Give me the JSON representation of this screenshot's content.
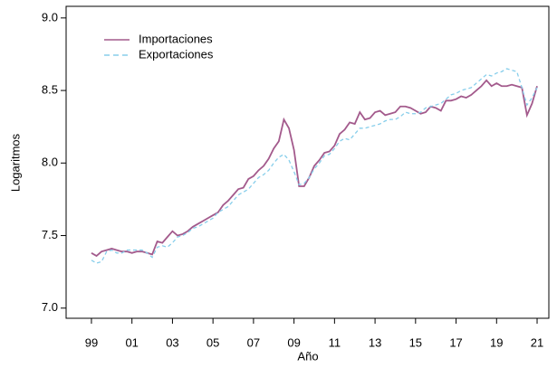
{
  "chart_data": {
    "type": "line",
    "xlabel": "Año",
    "ylabel": "Logaritmos",
    "x": [
      1999,
      1999.25,
      1999.5,
      1999.75,
      2000,
      2000.25,
      2000.5,
      2000.75,
      2001,
      2001.25,
      2001.5,
      2001.75,
      2002,
      2002.25,
      2002.5,
      2002.75,
      2003,
      2003.25,
      2003.5,
      2003.75,
      2004,
      2004.25,
      2004.5,
      2004.75,
      2005,
      2005.25,
      2005.5,
      2005.75,
      2006,
      2006.25,
      2006.5,
      2006.75,
      2007,
      2007.25,
      2007.5,
      2007.75,
      2008,
      2008.25,
      2008.5,
      2008.75,
      2009,
      2009.25,
      2009.5,
      2009.75,
      2010,
      2010.25,
      2010.5,
      2010.75,
      2011,
      2011.25,
      2011.5,
      2011.75,
      2012,
      2012.25,
      2012.5,
      2012.75,
      2013,
      2013.25,
      2013.5,
      2013.75,
      2014,
      2014.25,
      2014.5,
      2014.75,
      2015,
      2015.25,
      2015.5,
      2015.75,
      2016,
      2016.25,
      2016.5,
      2016.75,
      2017,
      2017.25,
      2017.5,
      2017.75,
      2018,
      2018.25,
      2018.5,
      2018.75,
      2019,
      2019.25,
      2019.5,
      2019.75,
      2020,
      2020.25,
      2020.5,
      2020.75,
      2021
    ],
    "series": [
      {
        "name": "Importaciones",
        "color": "#a35a8c",
        "linestyle": "solid",
        "values": [
          7.38,
          7.36,
          7.39,
          7.4,
          7.41,
          7.4,
          7.39,
          7.39,
          7.38,
          7.39,
          7.39,
          7.38,
          7.37,
          7.46,
          7.45,
          7.49,
          7.53,
          7.5,
          7.51,
          7.53,
          7.56,
          7.58,
          7.6,
          7.62,
          7.64,
          7.66,
          7.71,
          7.74,
          7.78,
          7.82,
          7.83,
          7.89,
          7.91,
          7.95,
          7.98,
          8.03,
          8.1,
          8.15,
          8.3,
          8.24,
          8.09,
          7.84,
          7.84,
          7.9,
          7.98,
          8.02,
          8.07,
          8.08,
          8.12,
          8.2,
          8.23,
          8.28,
          8.27,
          8.35,
          8.3,
          8.31,
          8.35,
          8.36,
          8.33,
          8.34,
          8.35,
          8.39,
          8.39,
          8.38,
          8.36,
          8.34,
          8.35,
          8.39,
          8.38,
          8.36,
          8.43,
          8.43,
          8.44,
          8.46,
          8.45,
          8.47,
          8.5,
          8.53,
          8.57,
          8.53,
          8.55,
          8.53,
          8.53,
          8.54,
          8.53,
          8.52,
          8.33,
          8.41,
          8.53
        ]
      },
      {
        "name": "Exportaciones",
        "color": "#87ceeb",
        "linestyle": "dashed",
        "values": [
          7.33,
          7.31,
          7.32,
          7.39,
          7.4,
          7.38,
          7.38,
          7.4,
          7.4,
          7.4,
          7.4,
          7.38,
          7.35,
          7.42,
          7.43,
          7.42,
          7.45,
          7.49,
          7.5,
          7.52,
          7.55,
          7.56,
          7.58,
          7.6,
          7.62,
          7.66,
          7.68,
          7.7,
          7.74,
          7.78,
          7.8,
          7.82,
          7.86,
          7.9,
          7.92,
          7.95,
          8.0,
          8.04,
          8.06,
          8.02,
          7.94,
          7.85,
          7.86,
          7.9,
          7.96,
          8.0,
          8.05,
          8.06,
          8.1,
          8.15,
          8.17,
          8.16,
          8.2,
          8.24,
          8.24,
          8.25,
          8.26,
          8.27,
          8.29,
          8.3,
          8.3,
          8.32,
          8.35,
          8.34,
          8.34,
          8.35,
          8.38,
          8.39,
          8.4,
          8.41,
          8.44,
          8.47,
          8.48,
          8.5,
          8.51,
          8.52,
          8.55,
          8.58,
          8.61,
          8.6,
          8.62,
          8.63,
          8.65,
          8.64,
          8.63,
          8.52,
          8.4,
          8.45,
          8.52
        ]
      }
    ],
    "xlim": [
      1997.75,
      2021.58
    ],
    "ylim": [
      6.93,
      9.08
    ],
    "xticks": [
      {
        "value": 1999,
        "label": "99"
      },
      {
        "value": 2001,
        "label": "01"
      },
      {
        "value": 2003,
        "label": "03"
      },
      {
        "value": 2005,
        "label": "05"
      },
      {
        "value": 2007,
        "label": "07"
      },
      {
        "value": 2009,
        "label": "09"
      },
      {
        "value": 2011,
        "label": "11"
      },
      {
        "value": 2013,
        "label": "13"
      },
      {
        "value": 2015,
        "label": "15"
      },
      {
        "value": 2017,
        "label": "17"
      },
      {
        "value": 2019,
        "label": "19"
      },
      {
        "value": 2021,
        "label": "21"
      }
    ],
    "yticks": [
      {
        "value": 7,
        "label": "7.0"
      },
      7.5,
      {
        "value": 8,
        "label": "8.0"
      },
      8.5,
      {
        "value": 9,
        "label": "9.0"
      }
    ],
    "legend": "top-left"
  }
}
